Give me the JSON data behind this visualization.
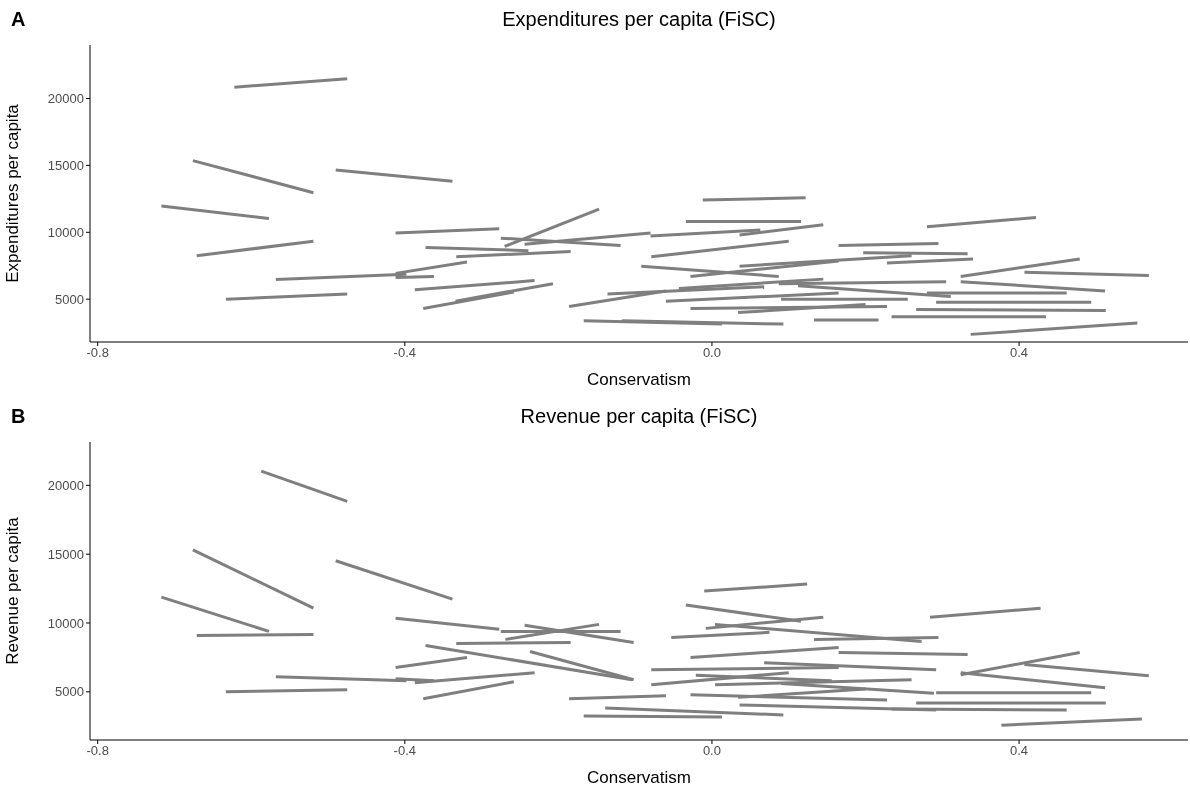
{
  "chart_data": [
    {
      "type": "line",
      "title": "Expenditures per capita (FiSC)",
      "xlabel": "Conservatism",
      "ylabel": "Expenditures per capita",
      "annotations": [
        "A"
      ],
      "color": "#7f7f7f",
      "xlim": [
        -0.81,
        0.62
      ],
      "xticks": [
        -0.8,
        -0.4,
        {
          "value": 0,
          "label": "0.0"
        },
        0.4
      ],
      "ylim": [
        1800,
        24000
      ],
      "yticks": [
        5000,
        10000,
        15000,
        20000
      ],
      "series": [
        {
          "x": [
            -0.622,
            -0.475
          ],
          "values": [
            20850,
            21470
          ]
        },
        {
          "x": [
            -0.676,
            -0.519
          ],
          "values": [
            15360,
            12960
          ]
        },
        {
          "x": [
            -0.49,
            -0.338
          ],
          "values": [
            14660,
            13810
          ]
        },
        {
          "x": [
            -0.717,
            -0.577
          ],
          "values": [
            11960,
            11030
          ]
        },
        {
          "x": [
            -0.671,
            -0.519
          ],
          "values": [
            8250,
            9330
          ]
        },
        {
          "x": [
            -0.633,
            -0.475
          ],
          "values": [
            5000,
            5390
          ]
        },
        {
          "x": [
            -0.568,
            -0.398
          ],
          "values": [
            6470,
            6860
          ]
        },
        {
          "x": [
            -0.412,
            -0.277
          ],
          "values": [
            9950,
            10260
          ]
        },
        {
          "x": [
            -0.27,
            -0.147
          ],
          "values": [
            8940,
            11730
          ]
        },
        {
          "x": [
            -0.034,
            0.116
          ],
          "values": [
            10800,
            10800
          ]
        },
        {
          "x": [
            -0.012,
            0.122
          ],
          "values": [
            12420,
            12580
          ]
        },
        {
          "x": [
            0.28,
            0.422
          ],
          "values": [
            10410,
            11110
          ]
        },
        {
          "x": [
            -0.275,
            -0.119
          ],
          "values": [
            9560,
            9020
          ]
        },
        {
          "x": [
            -0.373,
            -0.239
          ],
          "values": [
            8870,
            8630
          ]
        },
        {
          "x": [
            -0.333,
            -0.184
          ],
          "values": [
            8170,
            8560
          ]
        },
        {
          "x": [
            -0.244,
            -0.08
          ],
          "values": [
            9100,
            9950
          ]
        },
        {
          "x": [
            -0.08,
            0.063
          ],
          "values": [
            9720,
            10180
          ]
        },
        {
          "x": [
            -0.412,
            -0.319
          ],
          "values": [
            6930,
            7780
          ]
        },
        {
          "x": [
            -0.412,
            -0.362
          ],
          "values": [
            6620,
            6700
          ]
        },
        {
          "x": [
            -0.387,
            -0.231
          ],
          "values": [
            5700,
            6390
          ]
        },
        {
          "x": [
            -0.376,
            -0.258
          ],
          "values": [
            4300,
            5540
          ]
        },
        {
          "x": [
            -0.334,
            -0.207
          ],
          "values": [
            4850,
            6160
          ]
        },
        {
          "x": [
            -0.186,
            -0.06
          ],
          "values": [
            4460,
            5620
          ]
        },
        {
          "x": [
            -0.167,
            0.013
          ],
          "values": [
            3380,
            3140
          ]
        },
        {
          "x": [
            -0.117,
            0.093
          ],
          "values": [
            3380,
            3140
          ]
        },
        {
          "x": [
            0.036,
            0.145
          ],
          "values": [
            9790,
            10570
          ]
        },
        {
          "x": [
            0.324,
            0.512
          ],
          "values": [
            6310,
            5620
          ]
        },
        {
          "x": [
            0.324,
            0.479
          ],
          "values": [
            6700,
            8010
          ]
        },
        {
          "x": [
            0.337,
            0.554
          ],
          "values": [
            2370,
            3220
          ]
        },
        {
          "x": [
            0.407,
            0.569
          ],
          "values": [
            7010,
            6780
          ]
        },
        {
          "x": [
            0.234,
            0.435
          ],
          "values": [
            3690,
            3690
          ]
        },
        {
          "x": [
            0.266,
            0.513
          ],
          "values": [
            4230,
            4150
          ]
        },
        {
          "x": [
            0.292,
            0.494
          ],
          "values": [
            4770,
            4770
          ]
        },
        {
          "x": [
            0.28,
            0.462
          ],
          "values": [
            5460,
            5460
          ]
        },
        {
          "x": [
            0.133,
            0.217
          ],
          "values": [
            3450,
            3450
          ]
        },
        {
          "x": [
            0.165,
            0.295
          ],
          "values": [
            9020,
            9170
          ]
        },
        {
          "x": [
            0.197,
            0.333
          ],
          "values": [
            8480,
            8400
          ]
        },
        {
          "x": [
            0.228,
            0.34
          ],
          "values": [
            7710,
            8010
          ]
        },
        {
          "x": [
            -0.028,
            0.165
          ],
          "values": [
            6700,
            7860
          ]
        },
        {
          "x": [
            -0.06,
            0.165
          ],
          "values": [
            4850,
            5460
          ]
        },
        {
          "x": [
            -0.028,
            0.228
          ],
          "values": [
            4300,
            4460
          ]
        },
        {
          "x": [
            -0.079,
            0.1
          ],
          "values": [
            8170,
            9330
          ]
        },
        {
          "x": [
            -0.136,
            0.068
          ],
          "values": [
            5390,
            5930
          ]
        },
        {
          "x": [
            0.036,
            0.26
          ],
          "values": [
            7470,
            8250
          ]
        },
        {
          "x": [
            0.087,
            0.305
          ],
          "values": [
            6160,
            6310
          ]
        },
        {
          "x": [
            -0.092,
            0.087
          ],
          "values": [
            7470,
            6700
          ]
        },
        {
          "x": [
            0.034,
            0.2
          ],
          "values": [
            4000,
            4600
          ]
        },
        {
          "x": [
            0.09,
            0.255
          ],
          "values": [
            5000,
            5000
          ]
        },
        {
          "x": [
            -0.043,
            0.145
          ],
          "values": [
            5800,
            6500
          ]
        },
        {
          "x": [
            0.112,
            0.311
          ],
          "values": [
            6000,
            5200
          ]
        }
      ]
    },
    {
      "type": "line",
      "title": "Revenue per capita (FiSC)",
      "xlabel": "Conservatism",
      "ylabel": "Revenue per capita",
      "annotations": [
        "B"
      ],
      "color": "#7f7f7f",
      "xlim": [
        -0.81,
        0.62
      ],
      "xticks": [
        -0.8,
        -0.4,
        {
          "value": 0,
          "label": "0.0"
        },
        0.4
      ],
      "ylim": [
        1500,
        23150
      ],
      "yticks": [
        5000,
        10000,
        15000,
        20000
      ],
      "series": [
        {
          "x": [
            -0.587,
            -0.475
          ],
          "values": [
            21030,
            18840
          ]
        },
        {
          "x": [
            -0.676,
            -0.519
          ],
          "values": [
            15320,
            11080
          ]
        },
        {
          "x": [
            -0.49,
            -0.338
          ],
          "values": [
            14520,
            11730
          ]
        },
        {
          "x": [
            -0.717,
            -0.577
          ],
          "values": [
            11880,
            9390
          ]
        },
        {
          "x": [
            -0.671,
            -0.519
          ],
          "values": [
            9100,
            9170
          ]
        },
        {
          "x": [
            -0.633,
            -0.475
          ],
          "values": [
            5000,
            5150
          ]
        },
        {
          "x": [
            -0.568,
            -0.398
          ],
          "values": [
            6100,
            5800
          ]
        },
        {
          "x": [
            -0.412,
            -0.277
          ],
          "values": [
            10340,
            9540
          ]
        },
        {
          "x": [
            -0.275,
            -0.119
          ],
          "values": [
            9390,
            9390
          ]
        },
        {
          "x": [
            -0.269,
            -0.147
          ],
          "values": [
            8810,
            9900
          ]
        },
        {
          "x": [
            -0.244,
            -0.102
          ],
          "values": [
            9830,
            8590
          ]
        },
        {
          "x": [
            -0.333,
            -0.184
          ],
          "values": [
            8510,
            8590
          ]
        },
        {
          "x": [
            -0.034,
            0.116
          ],
          "values": [
            11300,
            10120
          ]
        },
        {
          "x": [
            -0.01,
            0.124
          ],
          "values": [
            12320,
            12830
          ]
        },
        {
          "x": [
            0.284,
            0.428
          ],
          "values": [
            10420,
            11080
          ]
        },
        {
          "x": [
            0.377,
            0.56
          ],
          "values": [
            2580,
            3020
          ]
        },
        {
          "x": [
            0.324,
            0.479
          ],
          "values": [
            6240,
            7850
          ]
        },
        {
          "x": [
            0.407,
            0.569
          ],
          "values": [
            6980,
            6170
          ]
        },
        {
          "x": [
            0.324,
            0.512
          ],
          "values": [
            6390,
            5290
          ]
        },
        {
          "x": [
            0.234,
            0.462
          ],
          "values": [
            3760,
            3680
          ]
        },
        {
          "x": [
            0.266,
            0.513
          ],
          "values": [
            4190,
            4190
          ]
        },
        {
          "x": [
            0.292,
            0.494
          ],
          "values": [
            4930,
            4930
          ]
        },
        {
          "x": [
            -0.167,
            0.013
          ],
          "values": [
            3240,
            3170
          ]
        },
        {
          "x": [
            -0.139,
            0.093
          ],
          "values": [
            3830,
            3320
          ]
        },
        {
          "x": [
            -0.186,
            -0.06
          ],
          "values": [
            4490,
            4710
          ]
        },
        {
          "x": [
            -0.376,
            -0.258
          ],
          "values": [
            4490,
            5730
          ]
        },
        {
          "x": [
            -0.387,
            -0.231
          ],
          "values": [
            5660,
            6390
          ]
        },
        {
          "x": [
            -0.412,
            -0.319
          ],
          "values": [
            6760,
            7490
          ]
        },
        {
          "x": [
            -0.412,
            -0.362
          ],
          "values": [
            5950,
            5810
          ]
        },
        {
          "x": [
            -0.373,
            -0.104
          ],
          "values": [
            8370,
            5880
          ]
        },
        {
          "x": [
            -0.237,
            -0.102
          ],
          "values": [
            7930,
            5880
          ]
        },
        {
          "x": [
            0.004,
            0.273
          ],
          "values": [
            9900,
            8660
          ]
        },
        {
          "x": [
            -0.008,
            0.145
          ],
          "values": [
            9610,
            10420
          ]
        },
        {
          "x": [
            0.133,
            0.295
          ],
          "values": [
            8810,
            8950
          ]
        },
        {
          "x": [
            0.165,
            0.333
          ],
          "values": [
            7850,
            7710
          ]
        },
        {
          "x": [
            -0.028,
            0.165
          ],
          "values": [
            7490,
            8220
          ]
        },
        {
          "x": [
            -0.079,
            0.165
          ],
          "values": [
            6610,
            6760
          ]
        },
        {
          "x": [
            -0.028,
            0.228
          ],
          "values": [
            4780,
            4410
          ]
        },
        {
          "x": [
            0.004,
            0.26
          ],
          "values": [
            5510,
            5880
          ]
        },
        {
          "x": [
            0.036,
            0.292
          ],
          "values": [
            4050,
            3680
          ]
        },
        {
          "x": [
            -0.079,
            0.1
          ],
          "values": [
            5510,
            6390
          ]
        },
        {
          "x": [
            0.068,
            0.292
          ],
          "values": [
            7120,
            6610
          ]
        },
        {
          "x": [
            -0.053,
            0.075
          ],
          "values": [
            8950,
            9320
          ]
        },
        {
          "x": [
            0.034,
            0.2
          ],
          "values": [
            4600,
            5200
          ]
        },
        {
          "x": [
            0.09,
            0.289
          ],
          "values": [
            5600,
            4900
          ]
        },
        {
          "x": [
            -0.021,
            0.156
          ],
          "values": [
            6200,
            5800
          ]
        }
      ]
    }
  ]
}
